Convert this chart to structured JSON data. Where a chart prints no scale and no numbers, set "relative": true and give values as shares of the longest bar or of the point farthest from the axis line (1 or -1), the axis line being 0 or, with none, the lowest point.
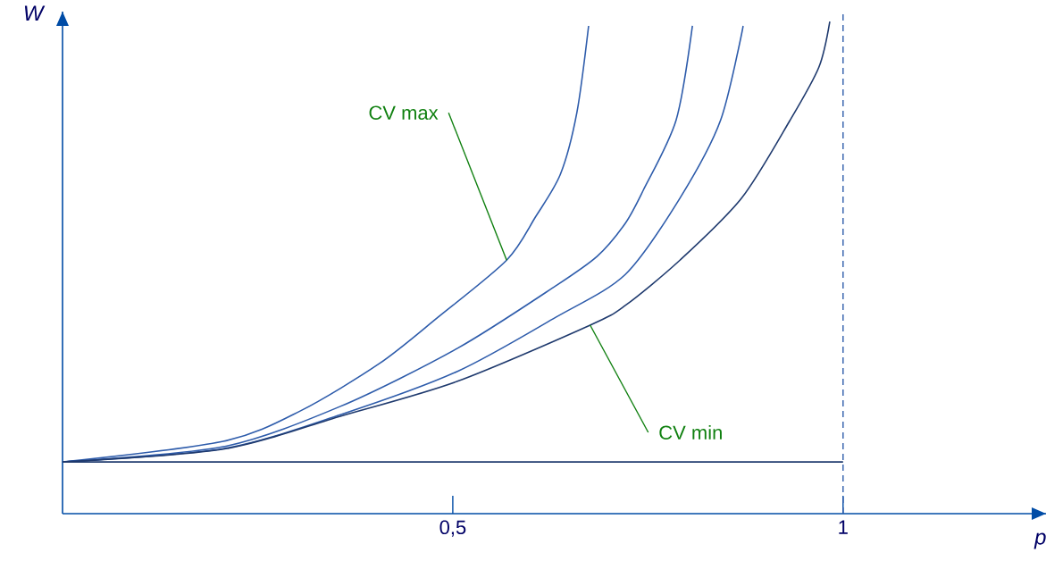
{
  "chart_data": {
    "type": "line",
    "relative": true,
    "xlabel": "p",
    "ylabel": "W",
    "xlim": [
      0,
      1.26
    ],
    "xticks": [
      {
        "value": 0.5,
        "label": "0,5"
      },
      1
    ],
    "marker": "none",
    "line_style": "solid",
    "series": [
      {
        "color": "#2e5cab",
        "x": [
          0,
          0.206,
          0.305,
          0.406,
          0.481,
          0.569,
          0.606,
          0.638,
          0.659,
          0.674
        ],
        "values": [
          0.105,
          0.147,
          0.209,
          0.305,
          0.399,
          0.515,
          0.603,
          0.69,
          0.815,
          0.991
        ]
      },
      {
        "color": "#2e5cab",
        "x": [
          0,
          0.206,
          0.356,
          0.506,
          0.632,
          0.685,
          0.721,
          0.744,
          0.786,
          0.807
        ],
        "values": [
          0.105,
          0.136,
          0.218,
          0.336,
          0.463,
          0.523,
          0.59,
          0.657,
          0.799,
          0.991
        ]
      },
      {
        "color": "#2e5cab",
        "x": [
          0,
          0.206,
          0.356,
          0.506,
          0.632,
          0.721,
          0.791,
          0.843,
          0.872
        ],
        "values": [
          0.105,
          0.132,
          0.201,
          0.289,
          0.399,
          0.486,
          0.641,
          0.799,
          0.991
        ]
      },
      {
        "color": "#1f3a6e",
        "x": [
          0,
          0.206,
          0.356,
          0.506,
          0.676,
          0.721,
          0.791,
          0.87,
          0.932,
          0.969,
          0.983
        ],
        "values": [
          0.105,
          0.131,
          0.198,
          0.269,
          0.383,
          0.423,
          0.515,
          0.641,
          0.799,
          0.907,
          1
        ]
      },
      {
        "color": "#1f3a6e",
        "x": [
          0,
          1
        ],
        "values": [
          0.105,
          0.105
        ]
      }
    ],
    "ref_lines": [
      {
        "axis": "x",
        "value": 1,
        "color": "#2e5cab",
        "line_style": "dashed"
      }
    ],
    "annotations": [
      {
        "text": "CV max",
        "x": 0.569,
        "y": 0.515
      },
      {
        "text": "CV min",
        "x": 0.676,
        "y": 0.383
      }
    ]
  }
}
